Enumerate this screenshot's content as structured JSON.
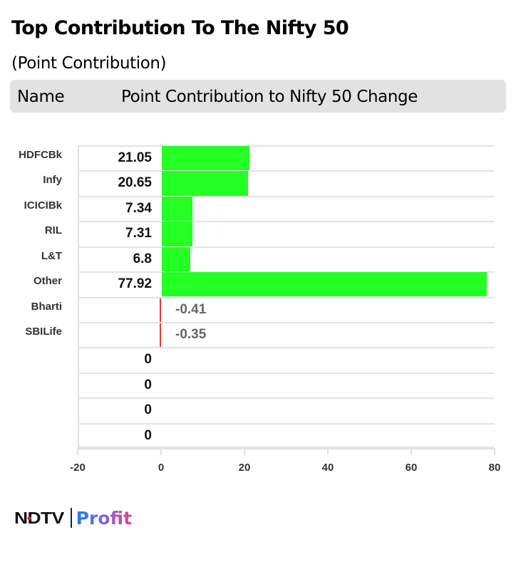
{
  "header": {
    "title": "Top Contribution To The Nifty 50",
    "subtitle": "(Point Contribution)",
    "column_name": "Name",
    "column_value": "Point Contribution to Nifty 50 Change"
  },
  "branding": {
    "ndtv": "NDTV",
    "profit": "Profit"
  },
  "colors": {
    "positive": "#24ff24",
    "negative": "#e8383d",
    "header_bg": "#e2e2e2",
    "grid": "#e3e3e3"
  },
  "chart_data": {
    "type": "bar",
    "orientation": "horizontal",
    "title": "Top Contribution To The Nifty 50",
    "subtitle": "(Point Contribution)",
    "xlabel": "Point Contribution to Nifty 50 Change",
    "ylabel": "Name",
    "categories": [
      "HDFCBk",
      "Infy",
      "ICICIBk",
      "RIL",
      "L&T",
      "Other",
      "Bharti",
      "SBILife",
      "",
      "",
      "",
      ""
    ],
    "values": [
      21.05,
      20.65,
      7.34,
      7.31,
      6.8,
      77.92,
      -0.41,
      -0.35,
      0,
      0,
      0,
      0
    ],
    "value_labels": [
      "21.05",
      "20.65",
      "7.34",
      "7.31",
      "6.8",
      "77.92",
      "-0.41",
      "-0.35",
      "0",
      "0",
      "0",
      "0"
    ],
    "xlim": [
      -20,
      80
    ],
    "xticks": [
      -20,
      0,
      20,
      40,
      60,
      80
    ],
    "xtick_labels": [
      "-20",
      "0",
      "20",
      "40",
      "60",
      "80"
    ],
    "grid": true,
    "legend": "none"
  }
}
